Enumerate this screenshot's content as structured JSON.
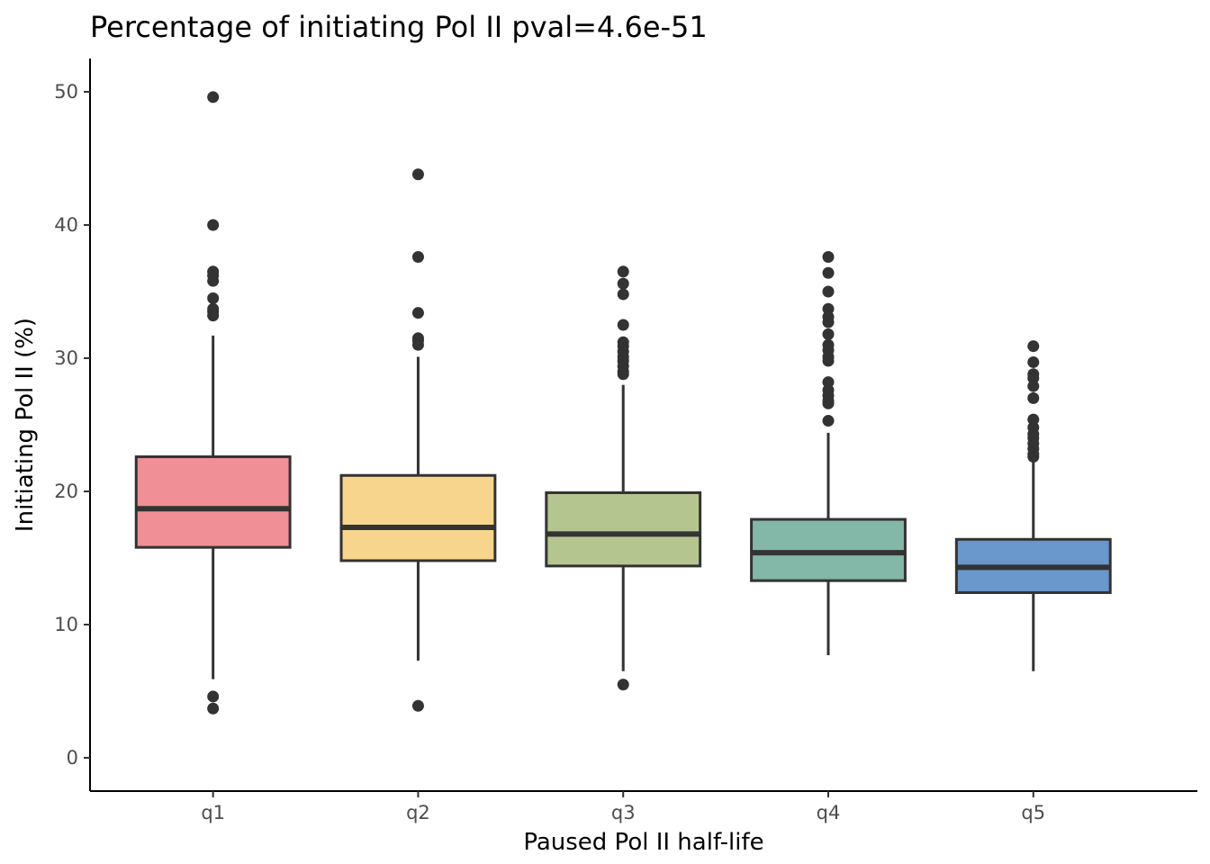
{
  "chart_data": {
    "type": "box",
    "title": "Percentage of initiating Pol II pval=4.6e-51",
    "xlabel": "Paused Pol II half-life",
    "ylabel": "Initiating Pol II (%)",
    "ylim": [
      -2.5,
      52.5
    ],
    "yticks": [
      0,
      10,
      20,
      30,
      40,
      50
    ],
    "grid": false,
    "legend": "none",
    "categories": [
      "q1",
      "q2",
      "q3",
      "q4",
      "q5"
    ],
    "colors": [
      "#F08F95",
      "#F8D58D",
      "#B5C590",
      "#83B7A8",
      "#6A97CC"
    ],
    "boxes": [
      {
        "category": "q1",
        "whisker_low": 5.9,
        "q1": 15.8,
        "median": 18.7,
        "q3": 22.6,
        "whisker_high": 31.7,
        "outliers": [
          49.6,
          40.0,
          36.5,
          36.2,
          35.8,
          34.5,
          33.7,
          33.5,
          33.2,
          4.6,
          3.7
        ]
      },
      {
        "category": "q2",
        "whisker_low": 7.3,
        "q1": 14.8,
        "median": 17.3,
        "q3": 21.2,
        "whisker_high": 30.1,
        "outliers": [
          43.8,
          37.6,
          33.4,
          31.5,
          31.3,
          31.0,
          3.9
        ]
      },
      {
        "category": "q3",
        "whisker_low": 6.5,
        "q1": 14.4,
        "median": 16.8,
        "q3": 19.9,
        "whisker_high": 28.0,
        "outliers": [
          36.5,
          35.6,
          34.8,
          32.5,
          31.2,
          30.9,
          30.5,
          30.1,
          29.8,
          29.4,
          29.0,
          28.8,
          5.5
        ]
      },
      {
        "category": "q4",
        "whisker_low": 7.7,
        "q1": 13.3,
        "median": 15.4,
        "q3": 17.9,
        "whisker_high": 24.4,
        "outliers": [
          37.6,
          36.4,
          35.0,
          33.7,
          33.1,
          32.7,
          31.8,
          31.0,
          30.6,
          30.1,
          29.8,
          28.2,
          27.6,
          27.2,
          26.8,
          26.6,
          25.3
        ]
      },
      {
        "category": "q5",
        "whisker_low": 6.5,
        "q1": 12.4,
        "median": 14.3,
        "q3": 16.4,
        "whisker_high": 22.3,
        "outliers": [
          30.9,
          29.7,
          28.8,
          28.5,
          27.9,
          27.0,
          25.4,
          24.8,
          24.3,
          24.0,
          23.6,
          23.2,
          22.8,
          22.6
        ]
      }
    ]
  }
}
